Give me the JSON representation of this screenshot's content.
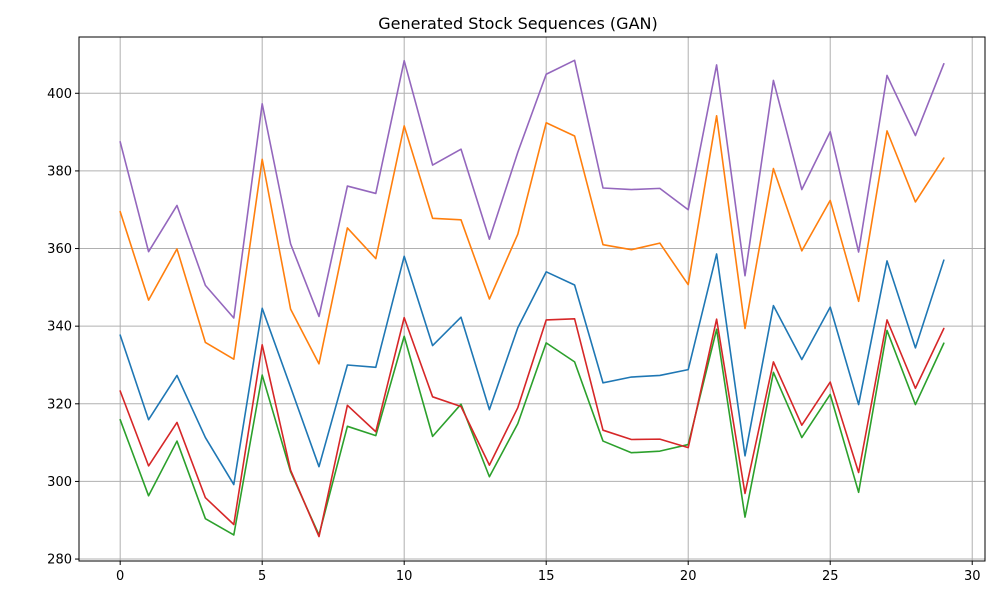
{
  "chart_data": {
    "type": "line",
    "title": "Generated Stock Sequences (GAN)",
    "xlabel": "",
    "ylabel": "",
    "xlim": [
      -1.45,
      30.45
    ],
    "ylim": [
      279.5,
      414.5
    ],
    "x_ticks": [
      0,
      5,
      10,
      15,
      20,
      25,
      30
    ],
    "y_ticks": [
      280,
      300,
      320,
      340,
      360,
      380,
      400
    ],
    "grid": true,
    "legend": "none",
    "x": [
      0,
      1,
      2,
      3,
      4,
      5,
      6,
      7,
      8,
      9,
      10,
      11,
      12,
      13,
      14,
      15,
      16,
      17,
      18,
      19,
      20,
      21,
      22,
      23,
      24,
      25,
      26,
      27,
      28,
      29
    ],
    "series": [
      {
        "color": "#1f77b4",
        "values": [
          337.7,
          315.9,
          327.3,
          311.3,
          299.2,
          344.6,
          324.3,
          303.8,
          330.0,
          329.4,
          358.0,
          335.0,
          342.3,
          318.5,
          339.6,
          354.0,
          350.6,
          325.4,
          326.9,
          327.3,
          328.8,
          358.6,
          306.6,
          345.3,
          331.4,
          344.9,
          319.8,
          356.8,
          334.4,
          357.0
        ]
      },
      {
        "color": "#ff7f0e",
        "values": [
          369.5,
          346.7,
          359.9,
          335.8,
          331.5,
          383.0,
          344.4,
          330.3,
          365.3,
          357.4,
          391.6,
          367.8,
          367.4,
          347.0,
          363.7,
          392.4,
          389.0,
          361.0,
          359.7,
          361.4,
          350.7,
          394.2,
          339.4,
          380.6,
          359.4,
          372.4,
          346.4,
          390.3,
          372.0,
          383.3
        ]
      },
      {
        "color": "#2ca02c",
        "values": [
          315.9,
          296.3,
          310.4,
          290.4,
          286.2,
          327.4,
          302.5,
          286.2,
          314.2,
          311.8,
          337.4,
          311.6,
          319.9,
          301.2,
          314.9,
          335.7,
          330.8,
          310.4,
          307.4,
          307.8,
          309.5,
          339.2,
          290.8,
          328.1,
          311.3,
          322.4,
          297.2,
          338.9,
          319.8,
          335.6
        ]
      },
      {
        "color": "#d62728",
        "values": [
          323.3,
          304.0,
          315.2,
          295.8,
          288.9,
          335.2,
          302.9,
          285.8,
          319.6,
          312.8,
          342.2,
          321.8,
          319.3,
          304.2,
          319.0,
          341.6,
          341.9,
          313.2,
          310.8,
          310.9,
          308.7,
          341.8,
          296.9,
          330.8,
          314.5,
          325.6,
          302.3,
          341.6,
          324.0,
          339.4
        ]
      },
      {
        "color": "#9467bd",
        "values": [
          387.5,
          359.2,
          371.1,
          350.5,
          342.1,
          397.3,
          361.2,
          342.5,
          376.1,
          374.2,
          408.4,
          381.5,
          385.6,
          362.4,
          384.8,
          404.9,
          408.5,
          375.6,
          375.2,
          375.5,
          370.0,
          407.3,
          353.0,
          403.3,
          375.2,
          390.1,
          359.1,
          404.6,
          389.1,
          407.6
        ]
      }
    ]
  }
}
